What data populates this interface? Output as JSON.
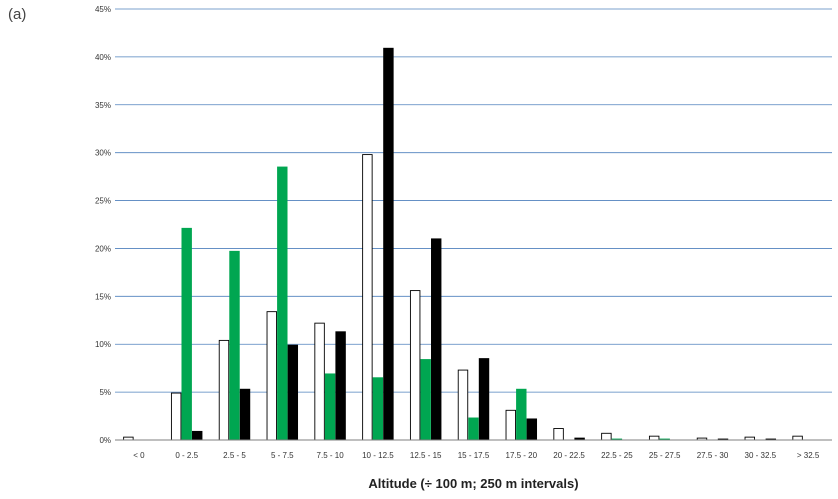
{
  "panel_label": "(a)",
  "chart_data": {
    "type": "bar",
    "title": "",
    "xlabel": "Altitude (÷ 100 m; 250 m intervals)",
    "ylabel": "",
    "ylim": [
      0,
      45
    ],
    "y_ticks": [
      0,
      5,
      10,
      15,
      20,
      25,
      30,
      35,
      40,
      45
    ],
    "y_tick_labels": [
      "0%",
      "5%",
      "10%",
      "15%",
      "20%",
      "25%",
      "30%",
      "35%",
      "40%",
      "45%"
    ],
    "grid": true,
    "legend": "none",
    "categories": [
      "< 0",
      "0 - 2.5",
      "2.5 - 5",
      "5 - 7.5",
      "7.5 - 10",
      "10 - 12.5",
      "12.5 - 15",
      "15 - 17.5",
      "17.5 - 20",
      "20 - 22.5",
      "22.5 - 25",
      "25 - 27.5",
      "27.5 - 30",
      "30 - 32.5",
      "> 32.5"
    ],
    "series": [
      {
        "color": "#ffffff",
        "stroke": "#000000",
        "values": [
          0.3,
          4.9,
          10.4,
          13.4,
          12.2,
          29.8,
          15.6,
          7.3,
          3.1,
          1.2,
          0.7,
          0.4,
          0.2,
          0.3,
          0.4
        ]
      },
      {
        "color": "#00a651",
        "stroke": "#00a651",
        "values": [
          0,
          22.1,
          19.7,
          28.5,
          6.9,
          6.5,
          8.4,
          2.3,
          5.3,
          0,
          0.1,
          0.1,
          0,
          0,
          0
        ]
      },
      {
        "color": "#000000",
        "stroke": "#000000",
        "values": [
          0,
          0.9,
          5.3,
          9.9,
          11.3,
          40.9,
          21.0,
          8.5,
          2.2,
          0.2,
          0,
          0,
          0.1,
          0.1,
          0
        ]
      }
    ]
  }
}
